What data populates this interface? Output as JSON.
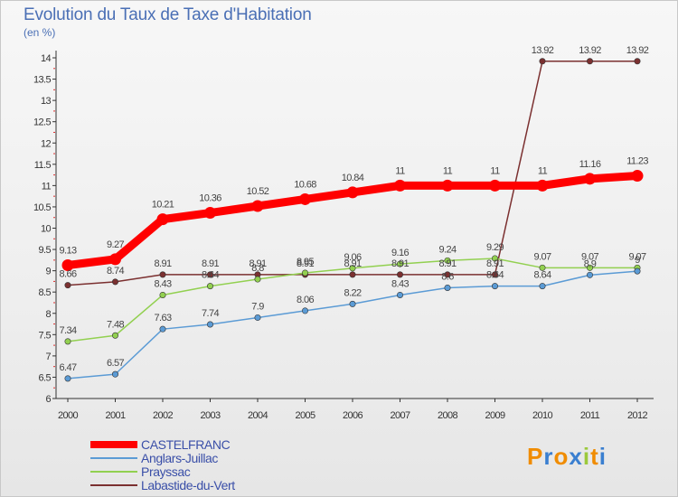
{
  "chart_data": {
    "type": "line",
    "title": "Evolution du Taux de Taxe d'Habitation",
    "unit_label": "(en %)",
    "x": [
      "2000",
      "2001",
      "2002",
      "2003",
      "2004",
      "2005",
      "2006",
      "2007",
      "2008",
      "2009",
      "2010",
      "2011",
      "2012"
    ],
    "ylim": [
      6,
      14
    ],
    "yticks": [
      "6",
      "6.5",
      "7",
      "7.5",
      "8",
      "8.5",
      "9",
      "9.5",
      "10",
      "10.5",
      "11",
      "11.5",
      "12",
      "12.5",
      "13",
      "13.5",
      "14"
    ],
    "grid": false,
    "legend_position": "bottom-left",
    "series": [
      {
        "name": "CASTELFRANC",
        "color": "#ff0000",
        "values": [
          9.13,
          9.27,
          10.21,
          10.36,
          10.52,
          10.68,
          10.84,
          11,
          11,
          11,
          11,
          11.16,
          11.23
        ],
        "labels": [
          "9.13",
          "9.27",
          "10.21",
          "10.36",
          "10.52",
          "10.68",
          "10.84",
          "11",
          "11",
          "11",
          "11",
          "11.16",
          "11.23"
        ]
      },
      {
        "name": "Anglars-Juillac",
        "color": "#5b9bd5",
        "values": [
          6.47,
          6.57,
          7.63,
          7.74,
          7.9,
          8.06,
          8.22,
          8.43,
          8.6,
          8.64,
          8.64,
          8.9,
          8.99
        ],
        "labels": [
          "6.47",
          "6.57",
          "7.63",
          "7.74",
          "7.9",
          "8.06",
          "8.22",
          "8.43",
          "8.6",
          "8.64",
          "8.64",
          "8.9",
          "9"
        ]
      },
      {
        "name": "Prayssac",
        "color": "#92d050",
        "values": [
          7.34,
          7.48,
          8.43,
          8.64,
          8.8,
          8.95,
          9.06,
          9.16,
          9.24,
          9.29,
          9.07,
          9.07,
          9.07
        ],
        "labels": [
          "7.34",
          "7.48",
          "8.43",
          "8.64",
          "8.8",
          "8.95",
          "9.06",
          "9.16",
          "9.24",
          "9.29",
          "9.07",
          "9.07",
          "9.07"
        ]
      },
      {
        "name": "Labastide-du-Vert",
        "color": "#7b3030",
        "values": [
          8.66,
          8.74,
          8.91,
          8.91,
          8.91,
          8.91,
          8.91,
          8.91,
          8.91,
          8.91,
          13.92,
          13.92,
          13.92
        ],
        "labels": [
          "8.66",
          "8.74",
          "8.91",
          "8.91",
          "8.91",
          "8.91",
          "8.91",
          "8.91",
          "8.91",
          "8.91",
          "13.92",
          "13.92",
          "13.92"
        ]
      }
    ]
  },
  "legend": {
    "items": [
      {
        "label": "CASTELFRANC",
        "color": "#ff0000"
      },
      {
        "label": "Anglars-Juillac",
        "color": "#5b9bd5"
      },
      {
        "label": "Prayssac",
        "color": "#92d050"
      },
      {
        "label": "Labastide-du-Vert",
        "color": "#7b3030"
      }
    ]
  },
  "logo": {
    "text": "Proxiti",
    "letter_colors": [
      "#f08c00",
      "#3a7fd0",
      "#f08c00",
      "#3a7fd0",
      "#9bc93c",
      "#f08c00",
      "#3a7fd0"
    ]
  }
}
